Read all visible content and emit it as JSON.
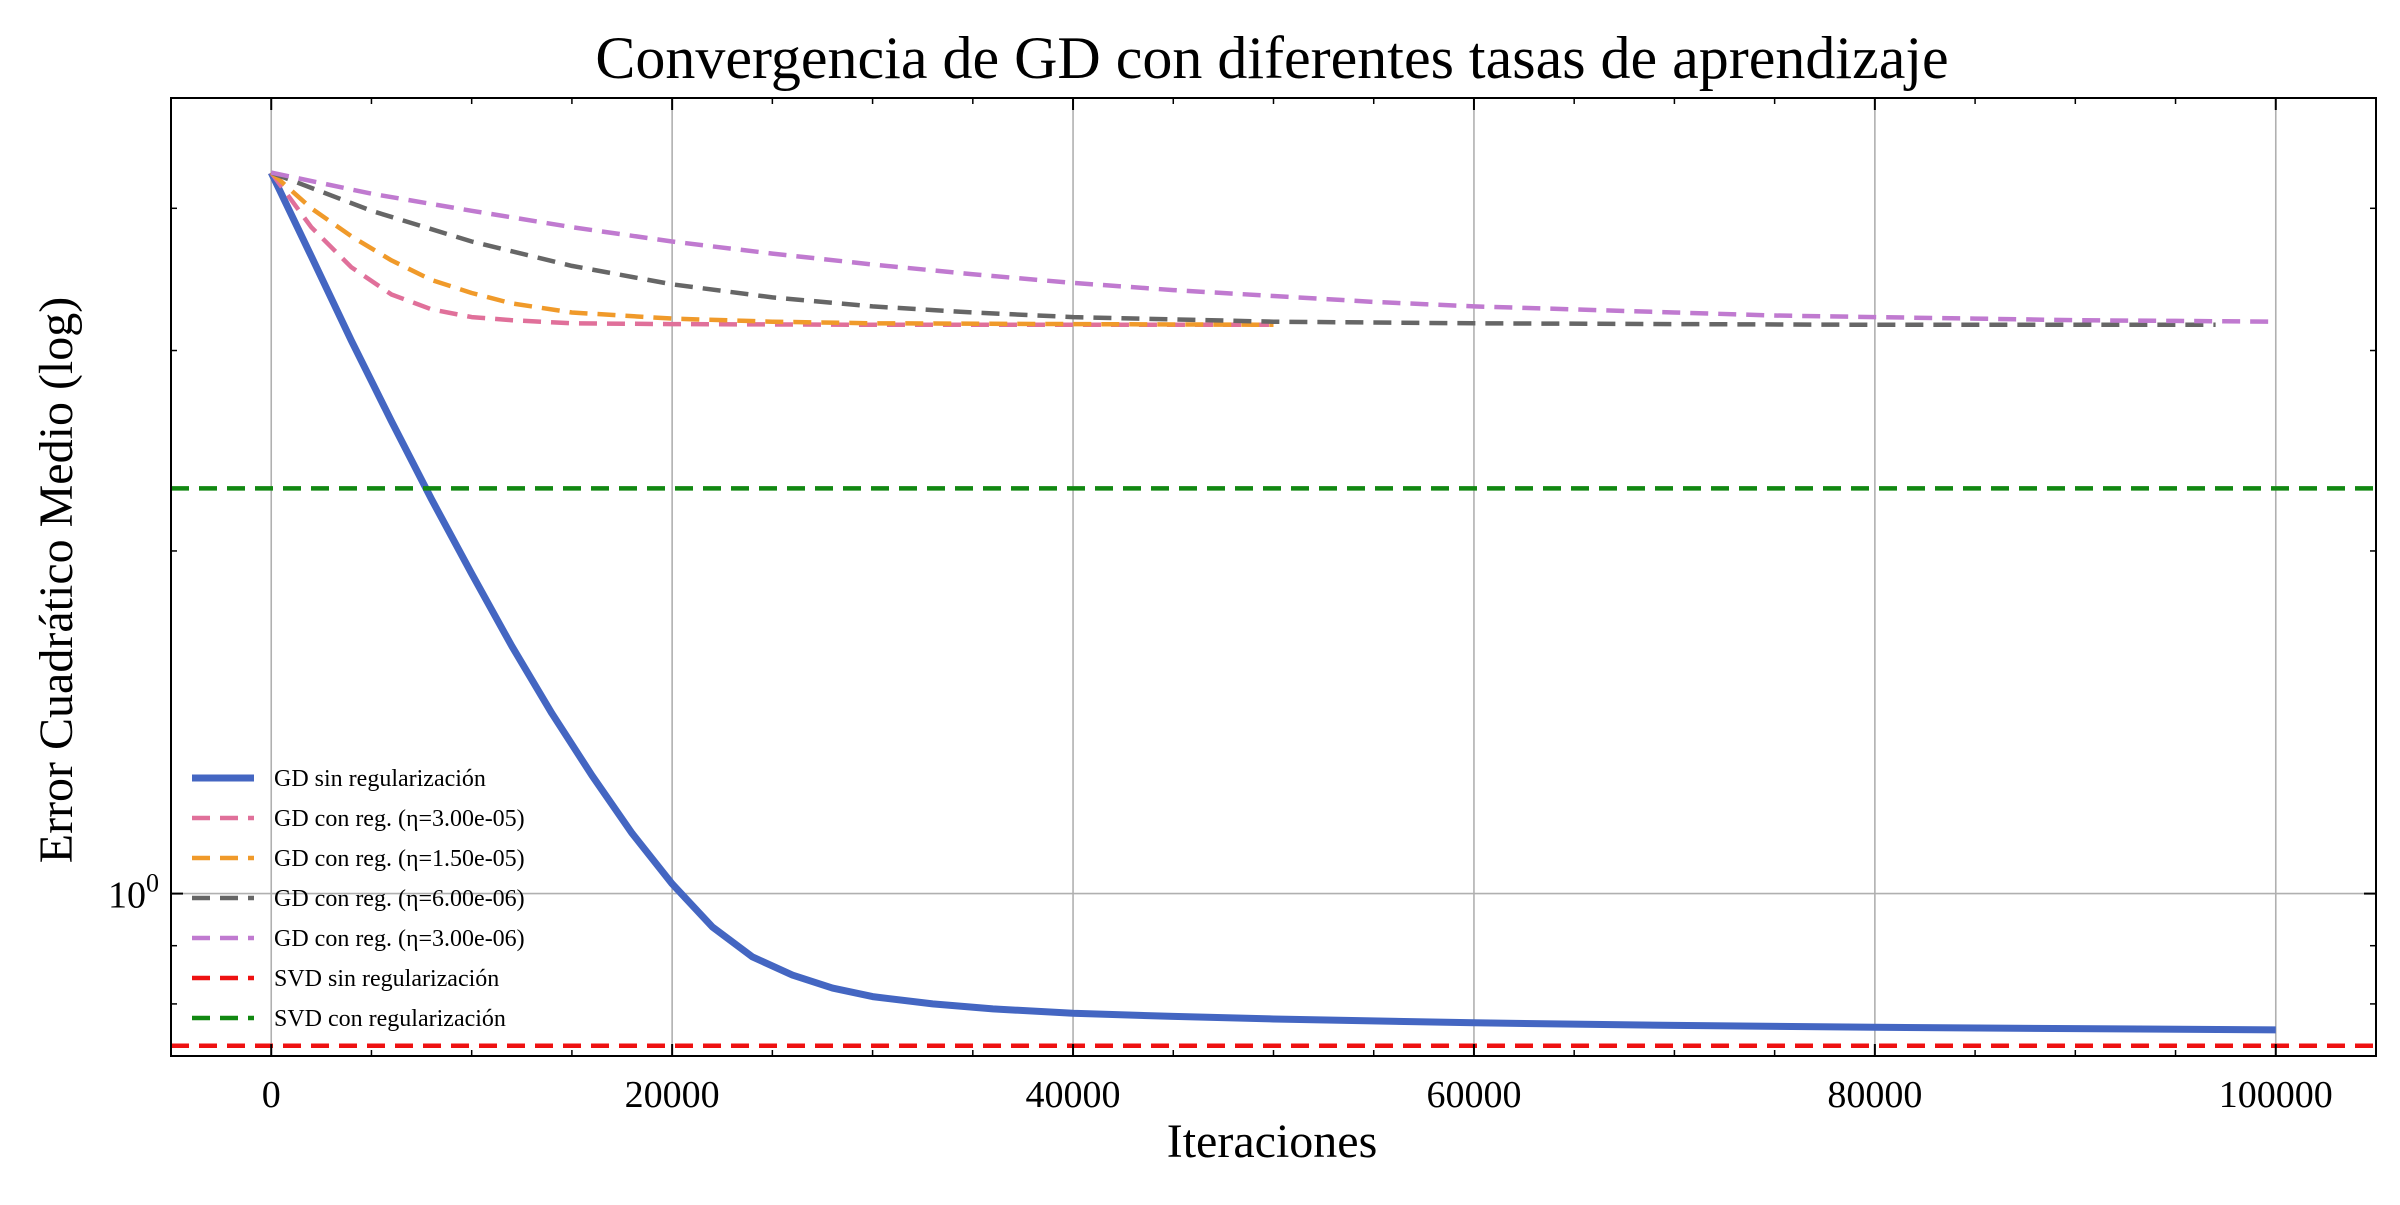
{
  "chart_data": {
    "type": "line",
    "title": "Convergencia de GD con diferentes tasas de aprendizaje",
    "xlabel": "Iteraciones",
    "ylabel": "Error Cuadrático Medio (log)",
    "xlim": [
      -5000,
      105000
    ],
    "ylim": [
      0.72,
      5.0
    ],
    "yscale": "log",
    "grid": true,
    "legend_position": "lower-left",
    "x_ticks": [
      0,
      20000,
      40000,
      60000,
      80000,
      100000
    ],
    "x_tick_labels": [
      "0",
      "20000",
      "40000",
      "60000",
      "80000",
      "100000"
    ],
    "y_tick_major_labels": [
      {
        "base": "10",
        "exp": "0",
        "value": 1
      }
    ],
    "series": [
      {
        "name": "GD sin regularización",
        "color": "#4466c2",
        "style": "solid",
        "x": [
          0,
          2000,
          4000,
          6000,
          8000,
          10000,
          12000,
          14000,
          16000,
          18000,
          20000,
          22000,
          24000,
          26000,
          28000,
          30000,
          33000,
          36000,
          40000,
          45000,
          50000,
          60000,
          70000,
          80000,
          90000,
          100000
        ],
        "y": [
          4.3,
          3.63,
          3.06,
          2.6,
          2.22,
          1.91,
          1.65,
          1.44,
          1.27,
          1.13,
          1.02,
          0.935,
          0.88,
          0.848,
          0.826,
          0.812,
          0.8,
          0.792,
          0.785,
          0.78,
          0.776,
          0.77,
          0.766,
          0.763,
          0.761,
          0.759
        ]
      },
      {
        "name": "GD con reg. (η=3.00e-05)",
        "color": "#e0709a",
        "style": "dashed",
        "x": [
          0,
          2000,
          4000,
          6000,
          8000,
          10000,
          12000,
          15000,
          20000,
          30000,
          40000,
          50000
        ],
        "y": [
          4.3,
          3.85,
          3.55,
          3.36,
          3.26,
          3.21,
          3.19,
          3.17,
          3.165,
          3.16,
          3.16,
          3.16
        ]
      },
      {
        "name": "GD con reg. (η=1.50e-05)",
        "color": "#f09a2a",
        "style": "dashed",
        "x": [
          0,
          2000,
          4000,
          6000,
          8000,
          10000,
          12000,
          15000,
          20000,
          25000,
          30000,
          40000,
          50000
        ],
        "y": [
          4.3,
          4.0,
          3.78,
          3.6,
          3.46,
          3.37,
          3.3,
          3.24,
          3.2,
          3.18,
          3.17,
          3.165,
          3.16
        ]
      },
      {
        "name": "GD con reg. (η=6.00e-06)",
        "color": "#666666",
        "style": "dashed",
        "x": [
          0,
          5000,
          10000,
          15000,
          20000,
          25000,
          30000,
          35000,
          40000,
          45000,
          50000,
          60000,
          70000,
          80000,
          90000,
          97000
        ],
        "y": [
          4.3,
          3.98,
          3.74,
          3.56,
          3.43,
          3.34,
          3.28,
          3.24,
          3.21,
          3.195,
          3.18,
          3.17,
          3.165,
          3.16,
          3.16,
          3.16
        ]
      },
      {
        "name": "GD con reg. (η=3.00e-06)",
        "color": "#c07ad0",
        "style": "dashed",
        "x": [
          0,
          5000,
          10000,
          15000,
          20000,
          25000,
          30000,
          35000,
          40000,
          45000,
          50000,
          55000,
          60000,
          65000,
          70000,
          75000,
          80000,
          85000,
          90000,
          95000,
          100000
        ],
        "y": [
          4.3,
          4.12,
          3.98,
          3.85,
          3.74,
          3.65,
          3.57,
          3.5,
          3.44,
          3.39,
          3.35,
          3.31,
          3.28,
          3.26,
          3.24,
          3.22,
          3.21,
          3.2,
          3.19,
          3.185,
          3.18
        ]
      },
      {
        "name": "SVD sin regularización",
        "color": "#ee1111",
        "style": "dashed",
        "hline": true,
        "y": 0.735
      },
      {
        "name": "SVD con regularización",
        "color": "#118811",
        "style": "dashed",
        "hline": true,
        "y": 2.27
      }
    ]
  }
}
